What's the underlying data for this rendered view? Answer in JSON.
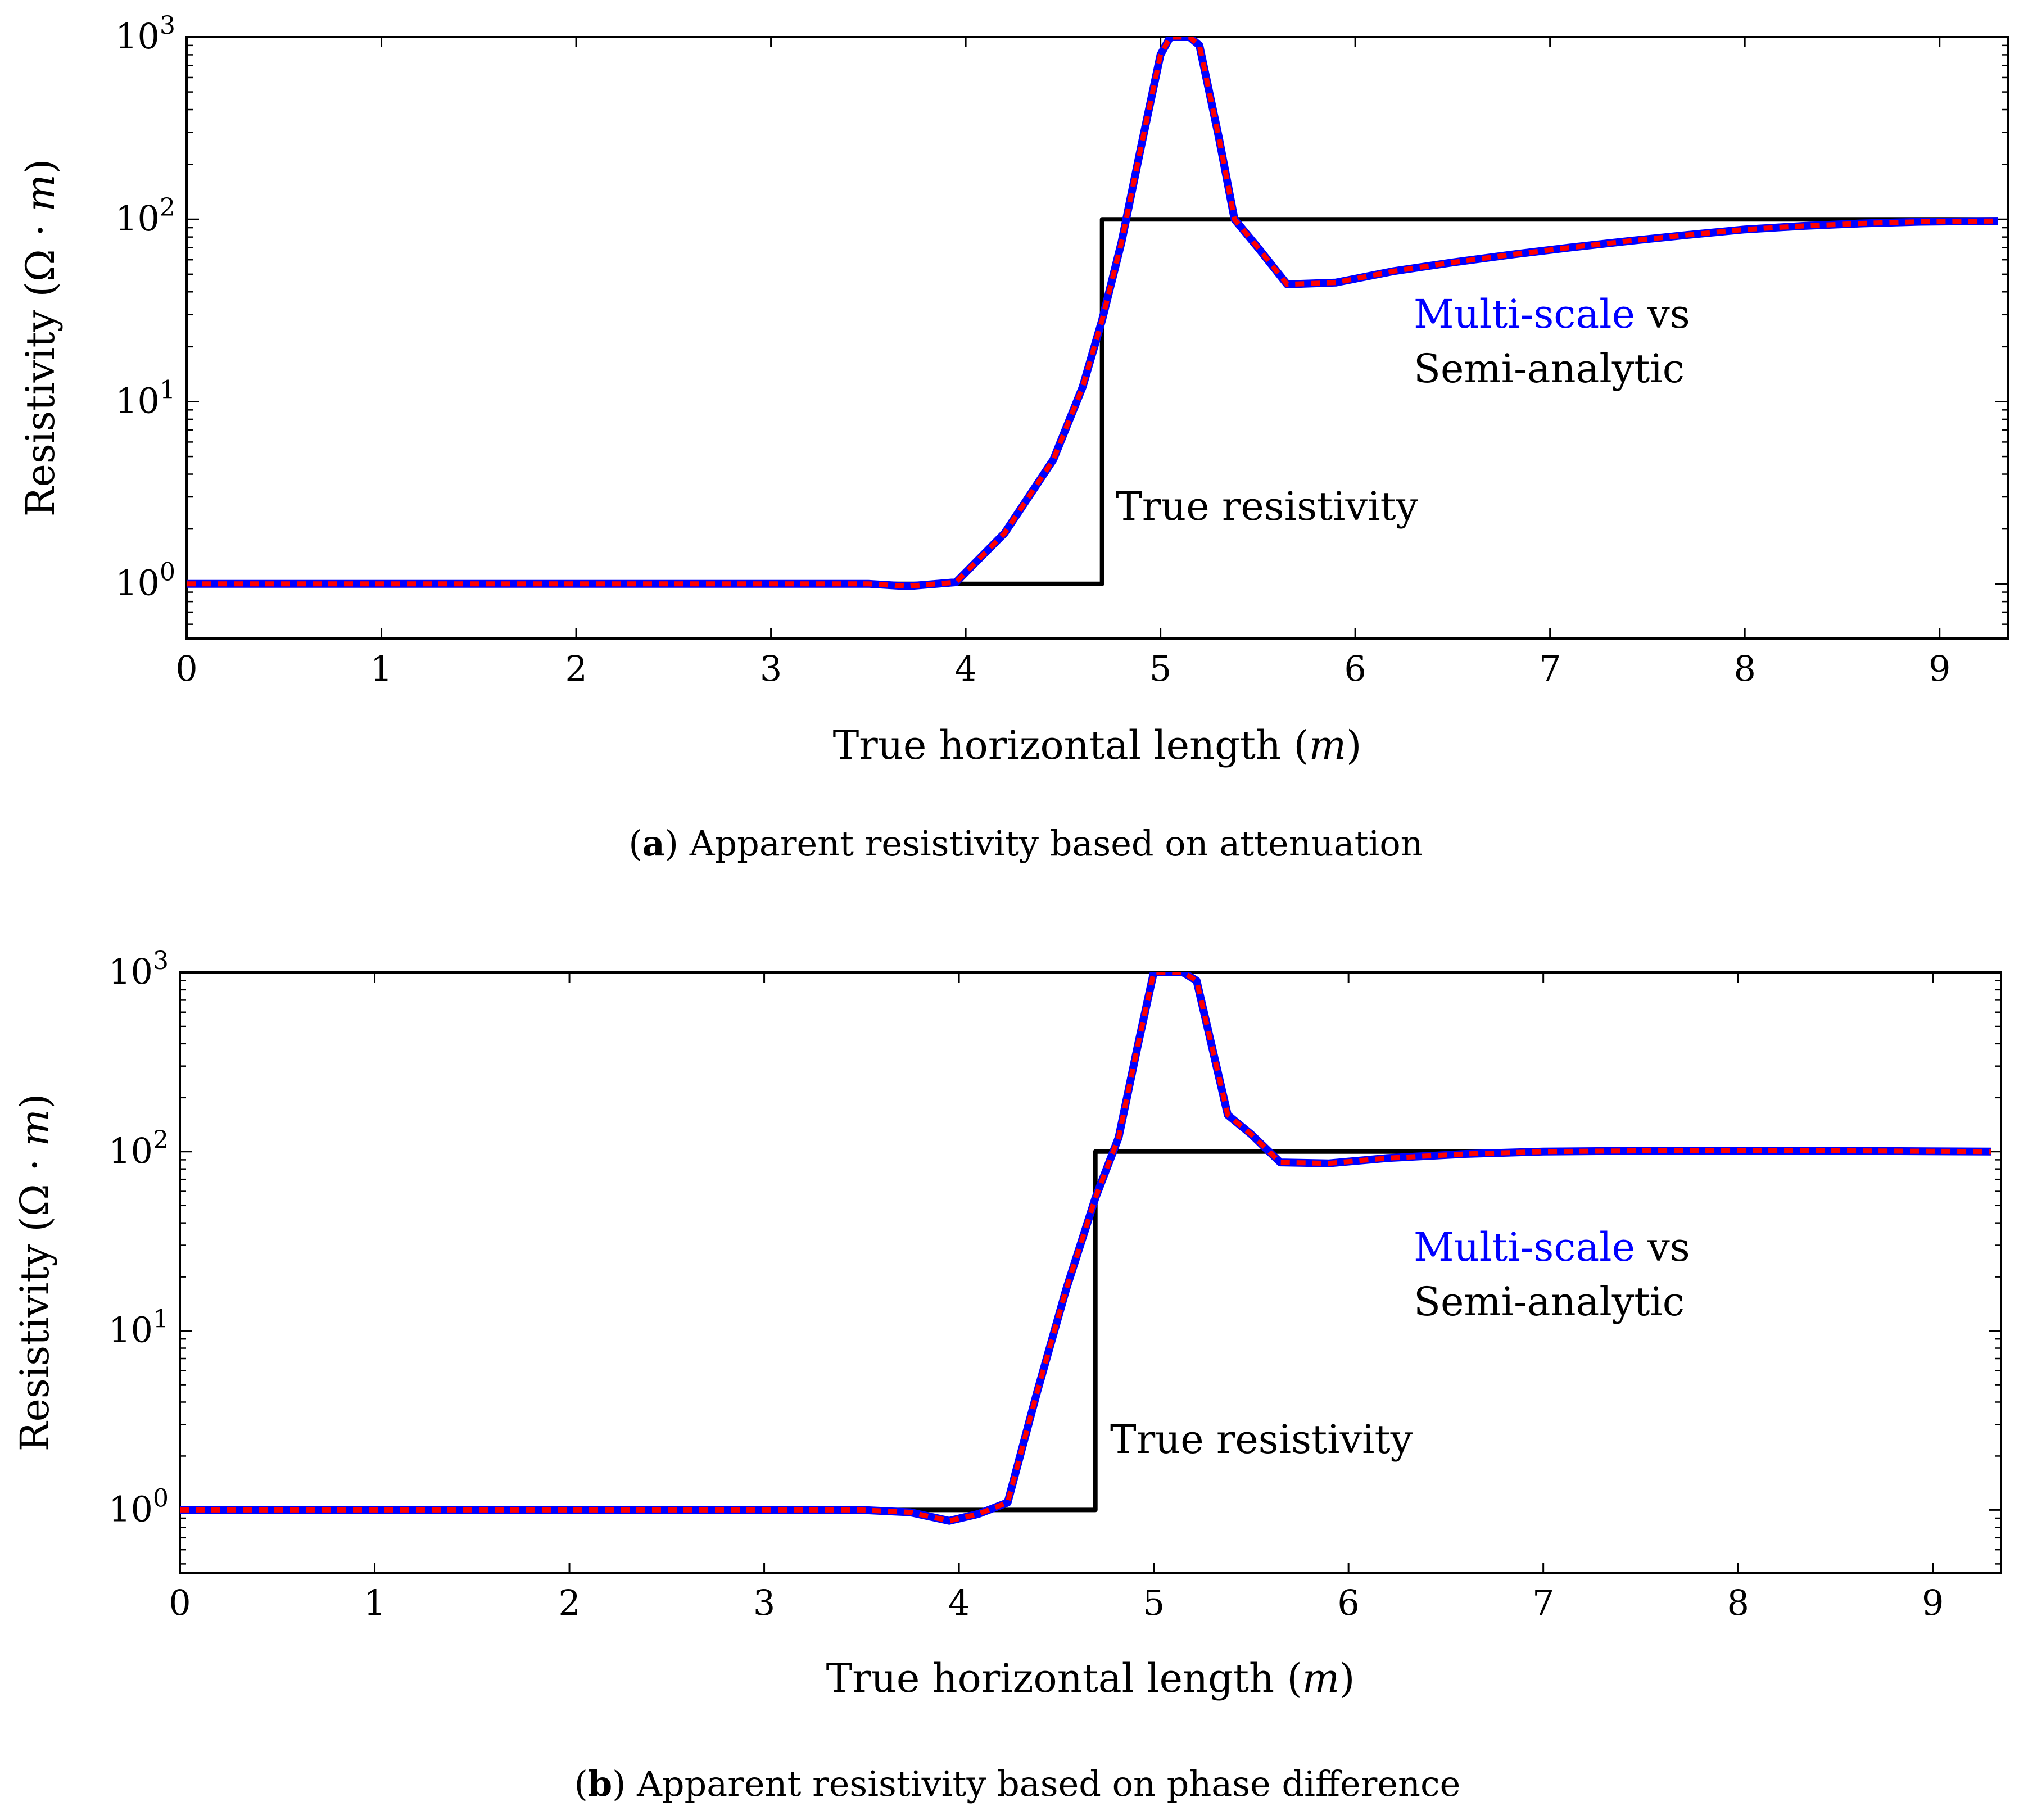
{
  "chart_data": [
    {
      "id": "a",
      "type": "line",
      "yscale": "log",
      "caption_tag": "a",
      "caption_text": "Apparent resistivity based on attenuation",
      "xlabel_prefix": "True horizontal length (",
      "xlabel_unit": "m",
      "xlabel_suffix": ")",
      "ylabel_prefix": "Resistivity (Ω · ",
      "ylabel_unit": "m",
      "ylabel_suffix": ")",
      "xlim": [
        0,
        9.35
      ],
      "ylim_exp": [
        -0.3,
        3
      ],
      "xticks": [
        "0",
        "1",
        "2",
        "3",
        "4",
        "5",
        "6",
        "7",
        "8",
        "9"
      ],
      "yticks": [
        {
          "exp": 0,
          "base": "10",
          "sup": "0"
        },
        {
          "exp": 1,
          "base": "10",
          "sup": "1"
        },
        {
          "exp": 2,
          "base": "10",
          "sup": "2"
        },
        {
          "exp": 3,
          "base": "10",
          "sup": "3"
        }
      ],
      "annotation_true": "True resistivity",
      "legend_multi": "Multi-scale",
      "legend_vs": " vs",
      "legend_semi": "Semi-analytic",
      "colors": {
        "true": "#000000",
        "multi": "#0000ff",
        "semi": "#ff0000"
      },
      "series": [
        {
          "name": "True resistivity",
          "x": [
            0,
            4.7,
            4.7,
            9.3
          ],
          "y": [
            1,
            1,
            100,
            100
          ]
        },
        {
          "name": "Multi-scale",
          "x": [
            0,
            0.5,
            1,
            1.5,
            2,
            2.5,
            3,
            3.5,
            3.7,
            3.95,
            4.2,
            4.45,
            4.6,
            4.7,
            4.8,
            4.9,
            5.0,
            5.05,
            5.15,
            5.2,
            5.3,
            5.38,
            5.5,
            5.65,
            5.9,
            6.2,
            6.5,
            6.8,
            7.1,
            7.4,
            7.7,
            8.0,
            8.3,
            8.6,
            8.9,
            9.3
          ],
          "y": [
            1,
            1,
            1,
            1,
            1,
            1,
            1,
            1,
            0.97,
            1.02,
            1.9,
            4.8,
            12,
            28,
            75,
            250,
            800,
            1000,
            1000,
            900,
            280,
            100,
            70,
            44,
            45,
            52,
            58,
            64,
            70,
            76,
            82,
            88,
            92,
            95,
            97,
            98
          ]
        },
        {
          "name": "Semi-analytic",
          "x": [
            0,
            0.5,
            1,
            1.5,
            2,
            2.5,
            3,
            3.5,
            3.7,
            3.95,
            4.2,
            4.45,
            4.6,
            4.7,
            4.8,
            4.9,
            5.0,
            5.05,
            5.15,
            5.2,
            5.3,
            5.38,
            5.5,
            5.65,
            5.9,
            6.2,
            6.5,
            6.8,
            7.1,
            7.4,
            7.7,
            8.0,
            8.3,
            8.6,
            8.9,
            9.3
          ],
          "y": [
            1,
            1,
            1,
            1,
            1,
            1,
            1,
            1,
            0.97,
            1.02,
            1.9,
            4.8,
            12,
            28,
            75,
            250,
            800,
            1000,
            1000,
            900,
            280,
            100,
            70,
            44,
            45,
            52,
            58,
            64,
            70,
            76,
            82,
            88,
            92,
            95,
            97,
            98
          ]
        }
      ]
    },
    {
      "id": "b",
      "type": "line",
      "yscale": "log",
      "caption_tag": "b",
      "caption_text": "Apparent resistivity based on phase difference",
      "xlabel_prefix": "True horizontal length (",
      "xlabel_unit": "m",
      "xlabel_suffix": ")",
      "ylabel_prefix": "Resistivity (Ω · ",
      "ylabel_unit": "m",
      "ylabel_suffix": ")",
      "xlim": [
        0,
        9.35
      ],
      "ylim_exp": [
        -0.35,
        3
      ],
      "xticks": [
        "0",
        "1",
        "2",
        "3",
        "4",
        "5",
        "6",
        "7",
        "8",
        "9"
      ],
      "yticks": [
        {
          "exp": 0,
          "base": "10",
          "sup": "0"
        },
        {
          "exp": 1,
          "base": "10",
          "sup": "1"
        },
        {
          "exp": 2,
          "base": "10",
          "sup": "2"
        },
        {
          "exp": 3,
          "base": "10",
          "sup": "3"
        }
      ],
      "annotation_true": "True resistivity",
      "legend_multi": "Multi-scale",
      "legend_vs": " vs",
      "legend_semi": "Semi-analytic",
      "colors": {
        "true": "#000000",
        "multi": "#0000ff",
        "semi": "#ff0000"
      },
      "series": [
        {
          "name": "True resistivity",
          "x": [
            0,
            4.7,
            4.7,
            9.3
          ],
          "y": [
            1,
            1,
            100,
            100
          ]
        },
        {
          "name": "Multi-scale",
          "x": [
            0,
            0.5,
            1,
            1.5,
            2,
            2.5,
            3,
            3.5,
            3.75,
            3.95,
            4.1,
            4.25,
            4.4,
            4.55,
            4.7,
            4.82,
            4.92,
            5.0,
            5.05,
            5.15,
            5.22,
            5.3,
            5.38,
            5.5,
            5.65,
            5.9,
            6.2,
            6.6,
            7.0,
            7.5,
            8.0,
            8.5,
            9.3
          ],
          "y": [
            1,
            1,
            1,
            1,
            1,
            1,
            1,
            1,
            0.97,
            0.87,
            0.95,
            1.1,
            4.5,
            17,
            55,
            120,
            400,
            1000,
            1000,
            1000,
            900,
            380,
            160,
            125,
            87,
            86,
            92,
            97,
            100,
            101,
            101,
            101,
            100
          ]
        },
        {
          "name": "Semi-analytic",
          "x": [
            0,
            0.5,
            1,
            1.5,
            2,
            2.5,
            3,
            3.5,
            3.75,
            3.95,
            4.1,
            4.25,
            4.4,
            4.55,
            4.7,
            4.82,
            4.92,
            5.0,
            5.05,
            5.15,
            5.22,
            5.3,
            5.38,
            5.5,
            5.65,
            5.9,
            6.2,
            6.6,
            7.0,
            7.5,
            8.0,
            8.5,
            9.3
          ],
          "y": [
            1,
            1,
            1,
            1,
            1,
            1,
            1,
            1,
            0.97,
            0.87,
            0.95,
            1.1,
            4.5,
            17,
            55,
            120,
            400,
            1000,
            1000,
            1000,
            900,
            380,
            160,
            125,
            87,
            86,
            92,
            97,
            100,
            101,
            101,
            101,
            100
          ]
        }
      ]
    }
  ]
}
